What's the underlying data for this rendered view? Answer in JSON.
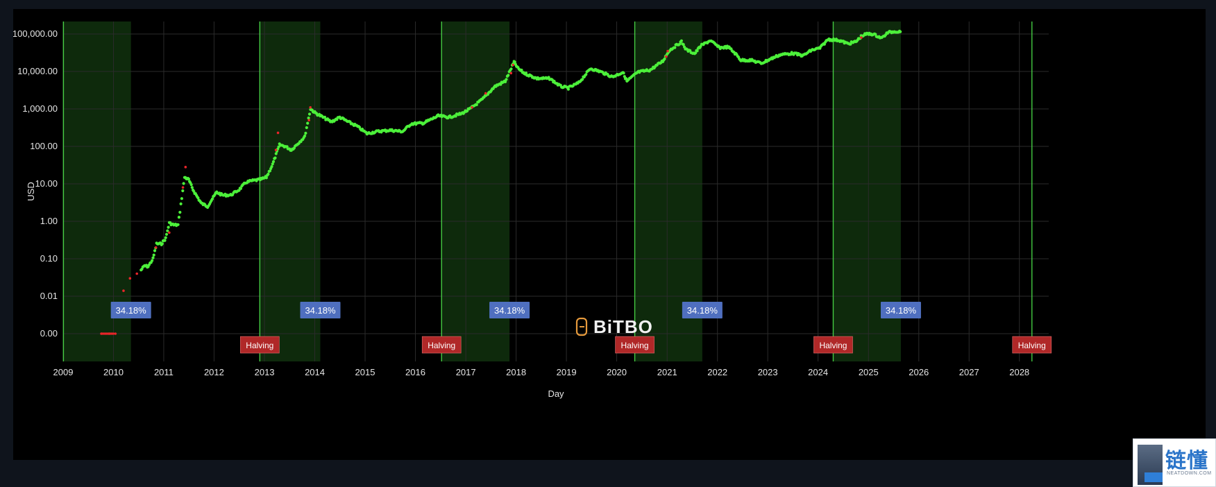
{
  "chart_data": {
    "type": "scatter",
    "title": "",
    "xlabel": "Day",
    "ylabel": "USD",
    "y_scale": "log",
    "xlim": [
      "2009-01-01",
      "2028-08-01"
    ],
    "x_ticks": [
      "2009",
      "2010",
      "2011",
      "2012",
      "2013",
      "2014",
      "2015",
      "2016",
      "2017",
      "2018",
      "2019",
      "2020",
      "2021",
      "2022",
      "2023",
      "2024",
      "2025",
      "2026",
      "2027",
      "2028"
    ],
    "y_ticks": [
      "0.00",
      "0.01",
      "0.10",
      "1.00",
      "10.00",
      "100.00",
      "1,000.00",
      "10,000.00",
      "100,000.00"
    ],
    "grid": true,
    "colors": {
      "price": "#4cf03a",
      "price_hot": "#e8252a",
      "halving_line": "#4ce04a",
      "shaded_period": "#0e2a0c",
      "halving_badge": "#b02828",
      "percent_badge": "#4f6fbf"
    },
    "halvings": [
      {
        "date": "2009-01-03",
        "label": ""
      },
      {
        "date": "2012-11-28",
        "label": "Halving"
      },
      {
        "date": "2016-07-09",
        "label": "Halving"
      },
      {
        "date": "2020-05-11",
        "label": "Halving"
      },
      {
        "date": "2024-04-20",
        "label": "Halving"
      },
      {
        "date": "2028-04-01",
        "label": "Halving"
      }
    ],
    "shaded_periods": [
      {
        "start": "2009-01-03",
        "end": "2010-05-08",
        "label": "34.18%"
      },
      {
        "start": "2012-11-28",
        "end": "2014-02-10",
        "label": "34.18%"
      },
      {
        "start": "2016-07-09",
        "end": "2017-11-14",
        "label": "34.18%"
      },
      {
        "start": "2020-05-11",
        "end": "2021-09-13",
        "label": "34.18%"
      },
      {
        "start": "2024-04-20",
        "end": "2025-08-24",
        "label": "34.18%"
      }
    ],
    "series": [
      {
        "points": [
          [
            "2010-07-20",
            0.05
          ],
          [
            "2010-08-15",
            0.065
          ],
          [
            "2010-09-10",
            0.062
          ],
          [
            "2010-10-15",
            0.1
          ],
          [
            "2010-11-10",
            0.25
          ],
          [
            "2010-12-15",
            0.25
          ],
          [
            "2011-01-15",
            0.35
          ],
          [
            "2011-02-10",
            0.9
          ],
          [
            "2011-03-15",
            0.8
          ],
          [
            "2011-04-15",
            0.8
          ],
          [
            "2011-06-01",
            15
          ],
          [
            "2011-07-01",
            13
          ],
          [
            "2011-08-01",
            7
          ],
          [
            "2011-09-01",
            4.5
          ],
          [
            "2011-10-01",
            3
          ],
          [
            "2011-11-15",
            2.5
          ],
          [
            "2011-12-20",
            4
          ],
          [
            "2012-01-20",
            6
          ],
          [
            "2012-03-01",
            5
          ],
          [
            "2012-05-01",
            5
          ],
          [
            "2012-07-01",
            7
          ],
          [
            "2012-08-20",
            11
          ],
          [
            "2012-10-01",
            12
          ],
          [
            "2012-12-01",
            13
          ],
          [
            "2013-01-15",
            15
          ],
          [
            "2013-03-01",
            33
          ],
          [
            "2013-04-20",
            110
          ],
          [
            "2013-06-01",
            100
          ],
          [
            "2013-07-15",
            80
          ],
          [
            "2013-09-01",
            120
          ],
          [
            "2013-10-20",
            180
          ],
          [
            "2013-12-01",
            1000
          ],
          [
            "2014-01-01",
            800
          ],
          [
            "2014-03-01",
            600
          ],
          [
            "2014-05-01",
            450
          ],
          [
            "2014-07-01",
            600
          ],
          [
            "2014-09-01",
            450
          ],
          [
            "2014-11-01",
            350
          ],
          [
            "2015-01-15",
            220
          ],
          [
            "2015-04-01",
            250
          ],
          [
            "2015-07-01",
            270
          ],
          [
            "2015-10-01",
            250
          ],
          [
            "2015-12-01",
            400
          ],
          [
            "2016-03-01",
            420
          ],
          [
            "2016-06-15",
            650
          ],
          [
            "2016-09-01",
            600
          ],
          [
            "2016-12-01",
            750
          ],
          [
            "2017-02-01",
            1000
          ],
          [
            "2017-05-01",
            1800
          ],
          [
            "2017-08-01",
            4000
          ],
          [
            "2017-10-15",
            5500
          ],
          [
            "2017-12-17",
            18000
          ],
          [
            "2018-01-15",
            12000
          ],
          [
            "2018-03-01",
            9000
          ],
          [
            "2018-06-01",
            6500
          ],
          [
            "2018-09-01",
            6500
          ],
          [
            "2018-11-20",
            4000
          ],
          [
            "2019-01-15",
            3600
          ],
          [
            "2019-04-01",
            5000
          ],
          [
            "2019-06-25",
            12000
          ],
          [
            "2019-09-01",
            10000
          ],
          [
            "2019-12-01",
            7200
          ],
          [
            "2020-02-15",
            9500
          ],
          [
            "2020-03-15",
            5500
          ],
          [
            "2020-06-01",
            9500
          ],
          [
            "2020-09-01",
            11000
          ],
          [
            "2020-12-01",
            19000
          ],
          [
            "2021-01-15",
            36000
          ],
          [
            "2021-04-15",
            62000
          ],
          [
            "2021-05-20",
            38000
          ],
          [
            "2021-07-20",
            30000
          ],
          [
            "2021-09-01",
            48000
          ],
          [
            "2021-11-10",
            67000
          ],
          [
            "2022-01-15",
            43000
          ],
          [
            "2022-03-20",
            45000
          ],
          [
            "2022-05-15",
            29000
          ],
          [
            "2022-06-20",
            20000
          ],
          [
            "2022-09-01",
            20000
          ],
          [
            "2022-11-15",
            16500
          ],
          [
            "2023-01-15",
            21000
          ],
          [
            "2023-04-01",
            28000
          ],
          [
            "2023-07-01",
            30500
          ],
          [
            "2023-09-15",
            26500
          ],
          [
            "2023-11-15",
            37000
          ],
          [
            "2024-01-15",
            42000
          ],
          [
            "2024-03-14",
            72000
          ],
          [
            "2024-06-01",
            68000
          ],
          [
            "2024-08-05",
            55000
          ],
          [
            "2024-10-01",
            62000
          ],
          [
            "2024-11-15",
            90000
          ],
          [
            "2024-12-20",
            100000
          ],
          [
            "2025-02-01",
            100000
          ],
          [
            "2025-04-08",
            78000
          ],
          [
            "2025-05-20",
            108000
          ],
          [
            "2025-07-15",
            118000
          ],
          [
            "2025-08-20",
            115000
          ]
        ],
        "hot_points": [
          [
            "2009-10-05",
            0.001
          ],
          [
            "2009-12-01",
            0.001
          ],
          [
            "2010-01-15",
            0.001
          ],
          [
            "2010-02-15",
            0.004
          ],
          [
            "2010-03-15",
            0.014
          ],
          [
            "2010-05-01",
            0.03
          ],
          [
            "2010-06-20",
            0.04
          ],
          [
            "2010-11-05",
            0.2
          ],
          [
            "2011-02-10",
            0.5
          ],
          [
            "2011-05-20",
            8
          ],
          [
            "2011-06-08",
            28
          ],
          [
            "2013-03-25",
            80
          ],
          [
            "2013-04-09",
            230
          ],
          [
            "2013-11-20",
            500
          ],
          [
            "2013-11-30",
            1100
          ],
          [
            "2017-02-15",
            1100
          ],
          [
            "2017-05-25",
            2600
          ],
          [
            "2017-11-25",
            9000
          ],
          [
            "2017-12-10",
            15000
          ],
          [
            "2020-12-25",
            25000
          ],
          [
            "2021-01-05",
            35000
          ],
          [
            "2024-11-10",
            80000
          ]
        ]
      }
    ],
    "watermark": "BiTBO"
  },
  "corner_logo": {
    "text_cn": "链懂",
    "text_en": "NEATDOWN.COM"
  }
}
